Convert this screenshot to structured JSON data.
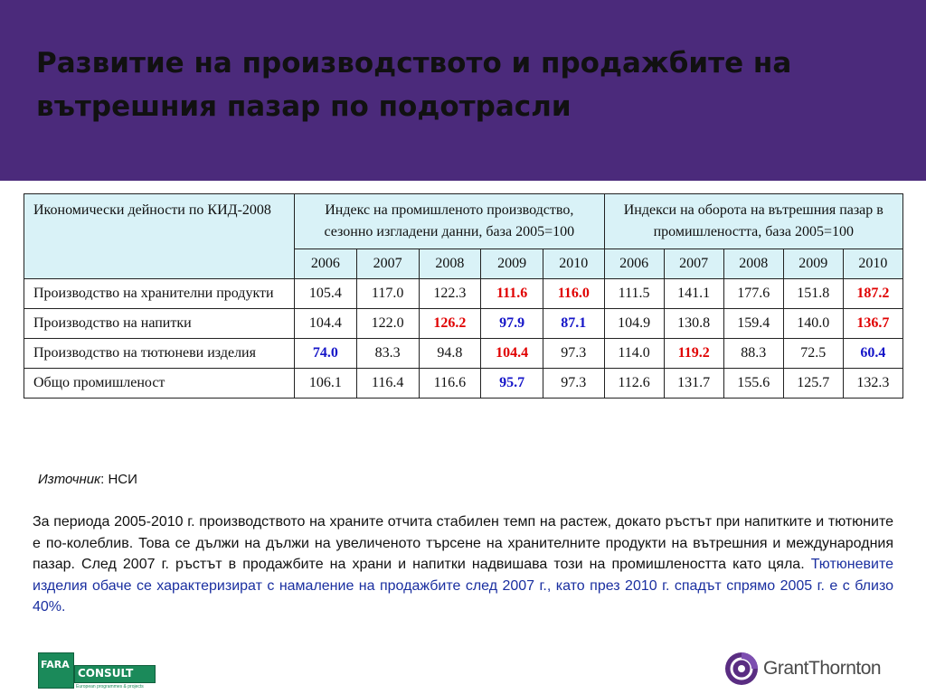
{
  "title": "Развитие на производството и продажбите на вътрешния пазар по подотрасли",
  "table": {
    "col_activity": "Икономически дейности по КИД-2008",
    "col_group1": "Индекс на промишленото производство, сезонно изгладени данни, база 2005=100",
    "col_group2": "Индекси на оборота на вътрешния пазар в промишлеността, база 2005=100",
    "years": [
      "2006",
      "2007",
      "2008",
      "2009",
      "2010",
      "2006",
      "2007",
      "2008",
      "2009",
      "2010"
    ],
    "rows": [
      {
        "label": "Производство на хранителни продукти",
        "values": [
          "105.4",
          "117.0",
          "122.3",
          "111.6",
          "116.0",
          "111.5",
          "141.1",
          "177.6",
          "151.8",
          "187.2"
        ],
        "styles": [
          "",
          "",
          "",
          "red",
          "red",
          "",
          "",
          "",
          "",
          "red"
        ]
      },
      {
        "label": "Производство на напитки",
        "values": [
          "104.4",
          "122.0",
          "126.2",
          "97.9",
          "87.1",
          "104.9",
          "130.8",
          "159.4",
          "140.0",
          "136.7"
        ],
        "styles": [
          "",
          "",
          "red",
          "blue",
          "blue",
          "",
          "",
          "",
          "",
          "red"
        ]
      },
      {
        "label": "Производство на тютюневи изделия",
        "values": [
          "74.0",
          "83.3",
          "94.8",
          "104.4",
          "97.3",
          "114.0",
          "119.2",
          "88.3",
          "72.5",
          "60.4"
        ],
        "styles": [
          "blue",
          "",
          "",
          "red",
          "",
          "",
          "red",
          "",
          "",
          "blue"
        ]
      },
      {
        "label": "Общо промишленост",
        "values": [
          "106.1",
          "116.4",
          "116.6",
          "95.7",
          "97.3",
          "112.6",
          "131.7",
          "155.6",
          "125.7",
          "132.3"
        ],
        "styles": [
          "",
          "",
          "",
          "blue",
          "",
          "",
          "",
          "",
          "",
          ""
        ]
      }
    ]
  },
  "source": {
    "label": "Източник",
    "value": ": НСИ"
  },
  "summary": {
    "text": "За периода 2005-2010 г. производството на храните отчита стабилен темп на растеж, докато ръстът при напитките и тютюните е по-колеблив. Това се дължи на дължи на увеличеното търсене на хранителните продукти на вътрешния и международния пазар. След 2007 г. ръстът в продажбите на храни и напитки надвишава този на промишлеността като цяла. ",
    "highlight": "Тютюневите изделия обаче се характеризират с намаление на продажбите след 2007 г., като през 2010 г. спадът спрямо 2005 г. е с близо 40%."
  },
  "logos": {
    "fara_text": "FARA",
    "consult_text": "CONSULT",
    "fara_tagline": "European programmes & projects",
    "gt_text": "GrantThornton"
  },
  "colors": {
    "header_band": "#4b2a7b",
    "table_header_bg": "#d9f2f7",
    "highlight_red": "#e00000",
    "highlight_blue": "#1515c8",
    "summary_highlight": "#1a2fa0"
  }
}
